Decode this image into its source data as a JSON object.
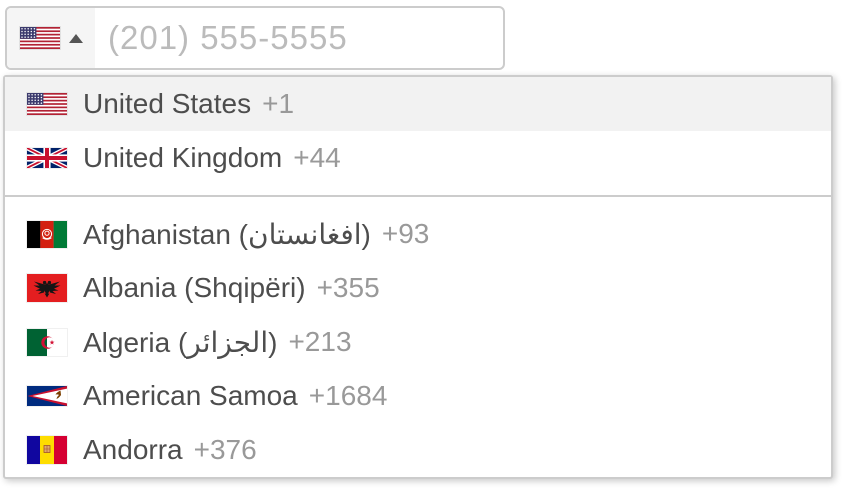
{
  "phone_field": {
    "placeholder": "(201) 555-5555",
    "selected_country": "us"
  },
  "dropdown": {
    "preferred_countries": [
      {
        "name": "United States",
        "dial_code": "+1",
        "flag": "us",
        "highlighted": true
      },
      {
        "name": "United Kingdom",
        "dial_code": "+44",
        "flag": "gb",
        "highlighted": false
      }
    ],
    "countries": [
      {
        "name": "Afghanistan (افغانستان)",
        "dial_code": "+93",
        "flag": "af",
        "highlighted": false
      },
      {
        "name": "Albania (Shqipëri)",
        "dial_code": "+355",
        "flag": "al",
        "highlighted": false
      },
      {
        "name": "Algeria (الجزائر)",
        "dial_code": "+213",
        "flag": "dz",
        "highlighted": false
      },
      {
        "name": "American Samoa",
        "dial_code": "+1684",
        "flag": "as",
        "highlighted": false
      },
      {
        "name": "Andorra",
        "dial_code": "+376",
        "flag": "ad",
        "highlighted": false
      }
    ]
  },
  "colors": {
    "border": "#cccccc",
    "highlight_bg": "#f2f2f2",
    "country_name": "#4d4d4d",
    "dial_code": "#999999",
    "placeholder": "#bbbbbb",
    "flag_button_bg": "#f5f5f5",
    "arrow": "#555555"
  }
}
